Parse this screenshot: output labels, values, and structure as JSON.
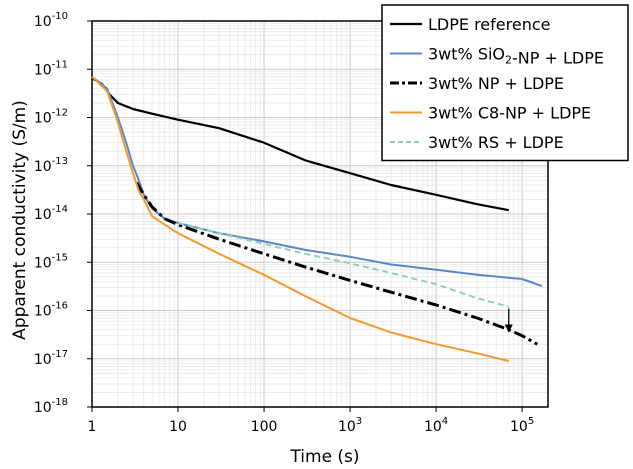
{
  "chart_data": {
    "type": "line",
    "title": "",
    "xlabel": "Time (s)",
    "ylabel": "Apparent conductivity (S/m)",
    "xscale": "log",
    "yscale": "log",
    "xlim": [
      1,
      200000
    ],
    "ylim": [
      1e-18,
      1e-10
    ],
    "grid": true,
    "legend_position": "top-right",
    "x_ticks": [
      {
        "value": 1,
        "base": "1",
        "exp": ""
      },
      {
        "value": 10,
        "base": "10",
        "exp": ""
      },
      {
        "value": 100,
        "base": "100",
        "exp": ""
      },
      {
        "value": 1000,
        "base": "10",
        "exp": "3"
      },
      {
        "value": 10000,
        "base": "10",
        "exp": "4"
      },
      {
        "value": 100000,
        "base": "10",
        "exp": "5"
      }
    ],
    "y_ticks": [
      {
        "value": 1e-10,
        "base": "10",
        "exp": "-10"
      },
      {
        "value": 1e-11,
        "base": "10",
        "exp": "-11"
      },
      {
        "value": 1e-12,
        "base": "10",
        "exp": "-12"
      },
      {
        "value": 1e-13,
        "base": "10",
        "exp": "-13"
      },
      {
        "value": 1e-14,
        "base": "10",
        "exp": "-14"
      },
      {
        "value": 1e-15,
        "base": "10",
        "exp": "-15"
      },
      {
        "value": 1e-16,
        "base": "10",
        "exp": "-16"
      },
      {
        "value": 1e-17,
        "base": "10",
        "exp": "-17"
      },
      {
        "value": 1e-18,
        "base": "10",
        "exp": "-18"
      }
    ],
    "series": [
      {
        "name": "LDPE reference",
        "label_parts": [
          {
            "t": "LDPE reference"
          }
        ],
        "color": "#000000",
        "style": "solid",
        "width": 2.2,
        "x": [
          1,
          1.3,
          1.6,
          2,
          3,
          5,
          10,
          30,
          100,
          300,
          1000,
          3000,
          10000,
          30000,
          70000
        ],
        "y": [
          6.5e-12,
          5e-12,
          3e-12,
          2e-12,
          1.5e-12,
          1.2e-12,
          9e-13,
          6e-13,
          3e-13,
          1.3e-13,
          7e-14,
          4e-14,
          2.5e-14,
          1.6e-14,
          1.2e-14
        ]
      },
      {
        "name": "3wt% SiO2-NP + LDPE",
        "label_parts": [
          {
            "t": "3wt% SiO"
          },
          {
            "t": "2",
            "sub": true
          },
          {
            "t": "-NP + LDPE"
          }
        ],
        "color": "#5b87c6",
        "style": "solid",
        "width": 2,
        "x": [
          1,
          1.5,
          2,
          2.5,
          3,
          3.5,
          4,
          5,
          7,
          10,
          30,
          100,
          300,
          1000,
          3000,
          10000,
          30000,
          100000,
          170000
        ],
        "y": [
          7e-12,
          4e-12,
          1e-12,
          3e-13,
          1e-13,
          5e-14,
          2.5e-14,
          1.3e-14,
          8e-15,
          6.5e-15,
          4e-15,
          2.7e-15,
          1.8e-15,
          1.3e-15,
          9e-16,
          7e-16,
          5.5e-16,
          4.5e-16,
          3.2e-16
        ]
      },
      {
        "name": "3wt% NP + LDPE",
        "label_parts": [
          {
            "t": "3wt% NP + LDPE"
          }
        ],
        "color": "#000000",
        "style": "dashdot",
        "width": 3,
        "x": [
          3.3,
          4,
          5,
          7,
          10,
          30,
          100,
          300,
          1000,
          3000,
          10000,
          30000,
          70000,
          100000,
          150000
        ],
        "y": [
          4.5e-14,
          2.5e-14,
          1.4e-14,
          8e-15,
          6e-15,
          3e-15,
          1.5e-15,
          8e-16,
          4.2e-16,
          2.4e-16,
          1.3e-16,
          7e-17,
          4e-17,
          3e-17,
          2e-17
        ]
      },
      {
        "name": "3wt% C8-NP + LDPE",
        "label_parts": [
          {
            "t": "3wt% C8-NP + LDPE"
          }
        ],
        "color": "#f39a2e",
        "style": "solid",
        "width": 2,
        "x": [
          1,
          1.5,
          2,
          2.5,
          3,
          3.5,
          4,
          5,
          7,
          10,
          30,
          100,
          300,
          1000,
          3000,
          10000,
          30000,
          70000
        ],
        "y": [
          7e-12,
          3.5e-12,
          8e-13,
          2e-13,
          7e-14,
          3e-14,
          2e-14,
          9e-15,
          6e-15,
          4e-15,
          1.5e-15,
          5.5e-16,
          2e-16,
          7e-17,
          3.5e-17,
          2e-17,
          1.3e-17,
          9e-18
        ]
      },
      {
        "name": "3wt% RS + LDPE",
        "label_parts": [
          {
            "t": "3wt% RS + LDPE"
          }
        ],
        "color": "#8fcfb5",
        "style": "dashed",
        "width": 2,
        "x": [
          10,
          30,
          100,
          300,
          1000,
          3000,
          10000,
          30000,
          70000
        ],
        "y": [
          6.5e-15,
          4e-15,
          2.4e-15,
          1.5e-15,
          9.5e-16,
          6e-16,
          3.5e-16,
          1.8e-16,
          1.2e-16
        ]
      }
    ],
    "annotations": [
      {
        "type": "arrow",
        "x": 70000,
        "y_from": 1.1e-16,
        "y_to": 3.5e-17
      }
    ]
  }
}
